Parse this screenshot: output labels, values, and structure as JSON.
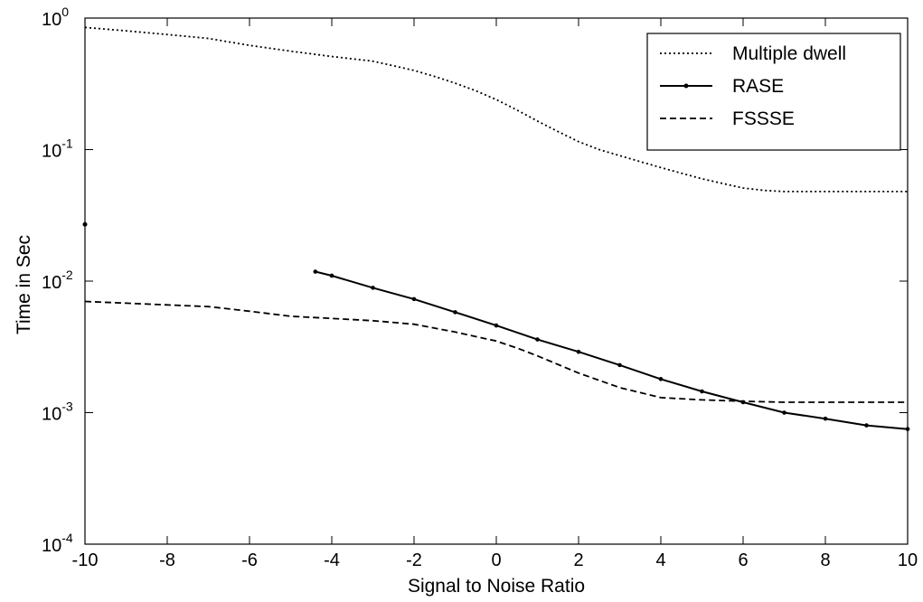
{
  "chart_data": {
    "type": "line",
    "title": "",
    "xlabel": "Signal to Noise Ratio",
    "ylabel": "Time in Sec",
    "xlim": [
      -10,
      10
    ],
    "ylim": [
      0.0001,
      1
    ],
    "yscale": "log",
    "grid": false,
    "legend_position": "top-right",
    "x_ticks": [
      -10,
      -8,
      -6,
      -4,
      -2,
      0,
      2,
      4,
      6,
      8,
      10
    ],
    "x_tick_labels": [
      "-10",
      "-8",
      "-6",
      "-4",
      "-2",
      "0",
      "2",
      "4",
      "6",
      "8",
      "10"
    ],
    "y_ticks": [
      {
        "value": 0.0001,
        "base": "10",
        "exp": "-4"
      },
      {
        "value": 0.001,
        "base": "10",
        "exp": "-3"
      },
      {
        "value": 0.01,
        "base": "10",
        "exp": "-2"
      },
      {
        "value": 0.1,
        "base": "10",
        "exp": "-1"
      },
      {
        "value": 1,
        "base": "10",
        "exp": "0"
      }
    ],
    "series": [
      {
        "name": "Multiple dwell",
        "style": "dotted",
        "color": "#000000",
        "x": [
          -10,
          -9,
          -8,
          -7,
          -6,
          -5,
          -4,
          -3,
          -2,
          -1.5,
          -1,
          -0.5,
          0,
          0.5,
          1,
          1.5,
          2,
          2.5,
          3,
          4,
          5,
          6,
          6.5,
          7,
          8,
          9,
          10
        ],
        "y": [
          0.85,
          0.8,
          0.75,
          0.7,
          0.62,
          0.56,
          0.51,
          0.47,
          0.4,
          0.36,
          0.32,
          0.28,
          0.24,
          0.2,
          0.165,
          0.137,
          0.115,
          0.1,
          0.09,
          0.073,
          0.06,
          0.051,
          0.049,
          0.048,
          0.048,
          0.048,
          0.048
        ]
      },
      {
        "name": "RASE",
        "style": "solid-dots",
        "color": "#000000",
        "x": [
          -4.4,
          -4,
          -3,
          -2,
          -1,
          0,
          1,
          2,
          3,
          4,
          5,
          6,
          7,
          8,
          9,
          10
        ],
        "y": [
          0.0118,
          0.011,
          0.0089,
          0.0073,
          0.0058,
          0.0046,
          0.0036,
          0.0029,
          0.0023,
          0.0018,
          0.00145,
          0.0012,
          0.001,
          0.0009,
          0.0008,
          0.00075
        ]
      },
      {
        "name": "FSSSE",
        "style": "dashed",
        "color": "#000000",
        "x": [
          -10,
          -9,
          -8,
          -7,
          -6,
          -5,
          -4,
          -3,
          -2,
          -1,
          0,
          0.5,
          1,
          2,
          3,
          4,
          5,
          6,
          7,
          8,
          9,
          10
        ],
        "y": [
          0.007,
          0.0068,
          0.0066,
          0.0064,
          0.0059,
          0.0054,
          0.0052,
          0.005,
          0.0047,
          0.0041,
          0.0035,
          0.0031,
          0.0027,
          0.002,
          0.00155,
          0.0013,
          0.00125,
          0.00122,
          0.0012,
          0.0012,
          0.0012,
          0.0012
        ]
      }
    ],
    "annotations": [
      {
        "kind": "point-mark",
        "x": -10,
        "y": 0.027
      }
    ]
  }
}
